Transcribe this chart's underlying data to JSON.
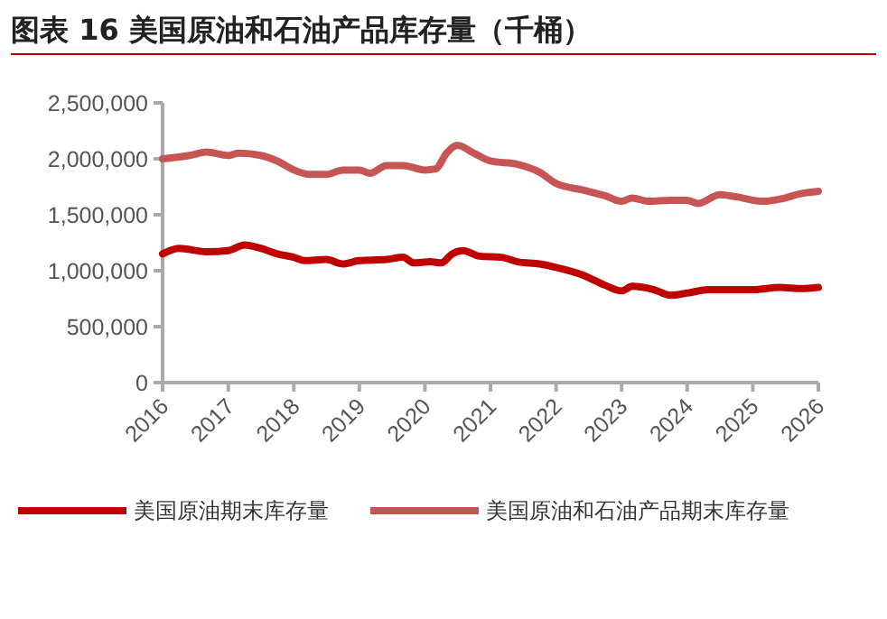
{
  "chart_data": {
    "type": "line",
    "title": "图表 16 美国原油和石油产品库存量（千桶）",
    "xlim": [
      "2016-01-01",
      "2026-01-01"
    ],
    "xticks": [
      {
        "value": "2016",
        "label": "2016"
      },
      {
        "value": "2017",
        "label": "2017"
      },
      {
        "value": "2018",
        "label": "2018"
      },
      {
        "value": "2019",
        "label": "2019"
      },
      {
        "value": "2020",
        "label": "2020"
      },
      {
        "value": "2021",
        "label": "2021"
      },
      {
        "value": "2022",
        "label": "2022"
      },
      {
        "value": "2023",
        "label": "2023"
      },
      {
        "value": "2024",
        "label": "2024"
      },
      {
        "value": "2025",
        "label": "2025"
      },
      {
        "value": "2026",
        "label": "2026"
      }
    ],
    "ylim": [
      0,
      2500000
    ],
    "yticks": [
      {
        "value": 0,
        "label": "0"
      },
      {
        "value": 500000,
        "label": "500,000"
      },
      {
        "value": 1000000,
        "label": "1,000,000"
      },
      {
        "value": 1500000,
        "label": "1,500,000"
      },
      {
        "value": 2000000,
        "label": "2,000,000"
      },
      {
        "value": 2500000,
        "label": "2,500,000"
      }
    ],
    "grid": false,
    "legend": "bottom",
    "line_style": "solid",
    "marker": "none",
    "series": [
      {
        "name": "美国原油期末库存量",
        "color": "#c00000",
        "x": [
          "2016-01",
          "2016-04",
          "2016-09",
          "2017-01",
          "2017-04",
          "2017-07",
          "2017-10",
          "2018-01",
          "2018-03",
          "2018-07",
          "2018-10",
          "2019-01",
          "2019-06",
          "2019-09",
          "2019-11",
          "2020-02",
          "2020-04",
          "2020-06",
          "2020-08",
          "2020-11",
          "2021-03",
          "2021-06",
          "2021-10",
          "2022-01",
          "2022-06",
          "2022-10",
          "2023-01",
          "2023-03",
          "2023-07",
          "2023-10",
          "2024-01",
          "2024-05",
          "2024-10",
          "2025-01",
          "2025-06",
          "2025-10",
          "2026-01"
        ],
        "values": [
          1150000,
          1200000,
          1170000,
          1180000,
          1230000,
          1200000,
          1150000,
          1120000,
          1090000,
          1100000,
          1060000,
          1090000,
          1100000,
          1120000,
          1070000,
          1080000,
          1070000,
          1150000,
          1180000,
          1130000,
          1120000,
          1080000,
          1060000,
          1030000,
          960000,
          870000,
          820000,
          860000,
          830000,
          780000,
          800000,
          830000,
          830000,
          830000,
          850000,
          840000,
          850000
        ]
      },
      {
        "name": "美国原油和石油产品期末库存量",
        "color": "#c85555",
        "x": [
          "2016-01",
          "2016-06",
          "2016-09",
          "2017-01",
          "2017-03",
          "2017-07",
          "2017-10",
          "2018-01",
          "2018-04",
          "2018-07",
          "2018-10",
          "2019-01",
          "2019-03",
          "2019-06",
          "2019-09",
          "2020-01",
          "2020-03",
          "2020-05",
          "2020-07",
          "2020-10",
          "2021-01",
          "2021-06",
          "2021-10",
          "2022-01",
          "2022-06",
          "2022-10",
          "2023-01",
          "2023-03",
          "2023-06",
          "2023-10",
          "2024-01",
          "2024-03",
          "2024-07",
          "2024-10",
          "2025-03",
          "2025-06",
          "2025-10",
          "2026-01"
        ],
        "values": [
          2000000,
          2030000,
          2060000,
          2030000,
          2050000,
          2030000,
          1980000,
          1900000,
          1860000,
          1860000,
          1900000,
          1900000,
          1870000,
          1940000,
          1940000,
          1900000,
          1910000,
          2050000,
          2120000,
          2050000,
          1980000,
          1950000,
          1880000,
          1780000,
          1720000,
          1670000,
          1620000,
          1650000,
          1620000,
          1630000,
          1630000,
          1600000,
          1680000,
          1660000,
          1620000,
          1640000,
          1690000,
          1710000
        ]
      }
    ]
  }
}
